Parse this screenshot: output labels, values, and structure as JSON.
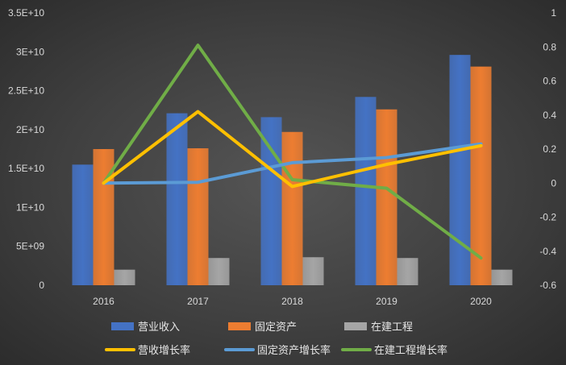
{
  "chart_data": {
    "type": "bar",
    "categories": [
      "2016",
      "2017",
      "2018",
      "2019",
      "2020"
    ],
    "bar_series": [
      {
        "name": "营业收入",
        "values": [
          15500000000.0,
          22100000000.0,
          21600000000.0,
          24200000000.0,
          29600000000.0
        ],
        "color": "#4472c4"
      },
      {
        "name": "固定资产",
        "values": [
          17500000000.0,
          17600000000.0,
          19700000000.0,
          22600000000.0,
          28100000000.0
        ],
        "color": "#ed7d31"
      },
      {
        "name": "在建工程",
        "values": [
          2000000000.0,
          3500000000.0,
          3600000000.0,
          3500000000.0,
          2000000000.0
        ],
        "color": "#a5a5a5"
      }
    ],
    "line_series": [
      {
        "name": "营收增长率",
        "values": [
          0.0,
          0.42,
          -0.02,
          0.11,
          0.22
        ],
        "color": "#ffc000"
      },
      {
        "name": "固定资产增长率",
        "values": [
          0.0,
          0.005,
          0.12,
          0.15,
          0.23
        ],
        "color": "#5b9bd5"
      },
      {
        "name": "在建工程增长率",
        "values": [
          0.0,
          0.81,
          0.02,
          -0.03,
          -0.44
        ],
        "color": "#70ad47"
      }
    ],
    "y_left": {
      "lim": [
        0,
        35000000000.0
      ],
      "ticks": [
        0,
        5000000000.0,
        10000000000.0,
        15000000000.0,
        20000000000.0,
        25000000000.0,
        30000000000.0,
        35000000000.0
      ],
      "tick_labels": [
        "0",
        "5E+09",
        "1E+10",
        "1.5E+10",
        "2E+10",
        "2.5E+10",
        "3E+10",
        "3.5E+10"
      ]
    },
    "y_right": {
      "lim": [
        -0.6,
        1
      ],
      "ticks": [
        -0.6,
        -0.4,
        -0.2,
        0,
        0.2,
        0.4,
        0.6,
        0.8,
        1
      ],
      "tick_labels": [
        "-0.6",
        "-0.4",
        "-0.2",
        "0",
        "0.2",
        "0.4",
        "0.6",
        "0.8",
        "1"
      ]
    },
    "grid": false,
    "legend": "bottom"
  }
}
